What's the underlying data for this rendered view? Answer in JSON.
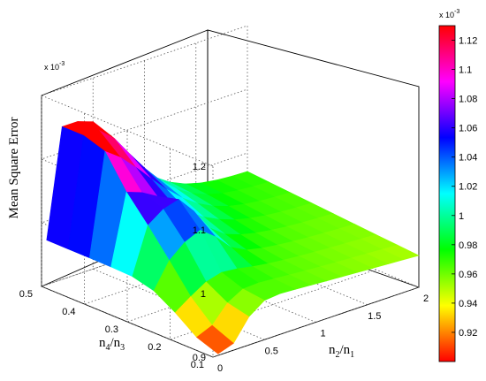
{
  "chart_data": {
    "type": "surface",
    "zlabel": "Mean Square Error",
    "xlabel_main": "n",
    "xlabel_sub1": "2",
    "xlabel_sep": "/n",
    "xlabel_sub2": "1",
    "ylabel_main": "n",
    "ylabel_sub1": "4",
    "ylabel_sep": "/n",
    "ylabel_sub2": "3",
    "z_exponent_label": "x 10",
    "z_exponent_power": "-3",
    "colorbar_exponent_label": "x 10",
    "colorbar_exponent_power": "-3",
    "x_ticks": [
      "0",
      "0.5",
      "1",
      "1.5",
      "2"
    ],
    "x_tick_values": [
      0,
      0.5,
      1,
      1.5,
      2
    ],
    "y_ticks": [
      "0.1",
      "0.2",
      "0.3",
      "0.4",
      "0.5"
    ],
    "y_tick_values": [
      0.1,
      0.2,
      0.3,
      0.4,
      0.5
    ],
    "z_ticks": [
      "0.9",
      "1",
      "1.1",
      "1.2"
    ],
    "z_tick_values": [
      0.9,
      1.0,
      1.1,
      1.2
    ],
    "colorbar_ticks": [
      "0.92",
      "0.94",
      "0.96",
      "0.98",
      "1",
      "1.02",
      "1.04",
      "1.06",
      "1.08",
      "1.1",
      "1.12"
    ],
    "colorbar_tick_values": [
      0.92,
      0.94,
      0.96,
      0.98,
      1.0,
      1.02,
      1.04,
      1.06,
      1.08,
      1.1,
      1.12
    ],
    "xlim": [
      0,
      2
    ],
    "ylim": [
      0.1,
      0.5
    ],
    "zlim": [
      0.9,
      1.2
    ],
    "clim": [
      0.9,
      1.13
    ],
    "grid": true,
    "colormap": "hsv",
    "colormap_stops": [
      "#ff0000",
      "#ffff00",
      "#00ff00",
      "#00ffff",
      "#0000ff",
      "#ff00ff",
      "#ff0000"
    ],
    "surface_x": [
      0.05,
      0.2,
      0.35,
      0.5,
      0.65,
      0.8,
      0.95,
      1.1,
      1.25,
      1.4,
      1.55,
      1.7,
      1.85,
      2.0
    ],
    "surface_y": [
      0.1,
      0.15,
      0.2,
      0.25,
      0.3,
      0.35,
      0.4,
      0.45,
      0.5
    ]
  }
}
